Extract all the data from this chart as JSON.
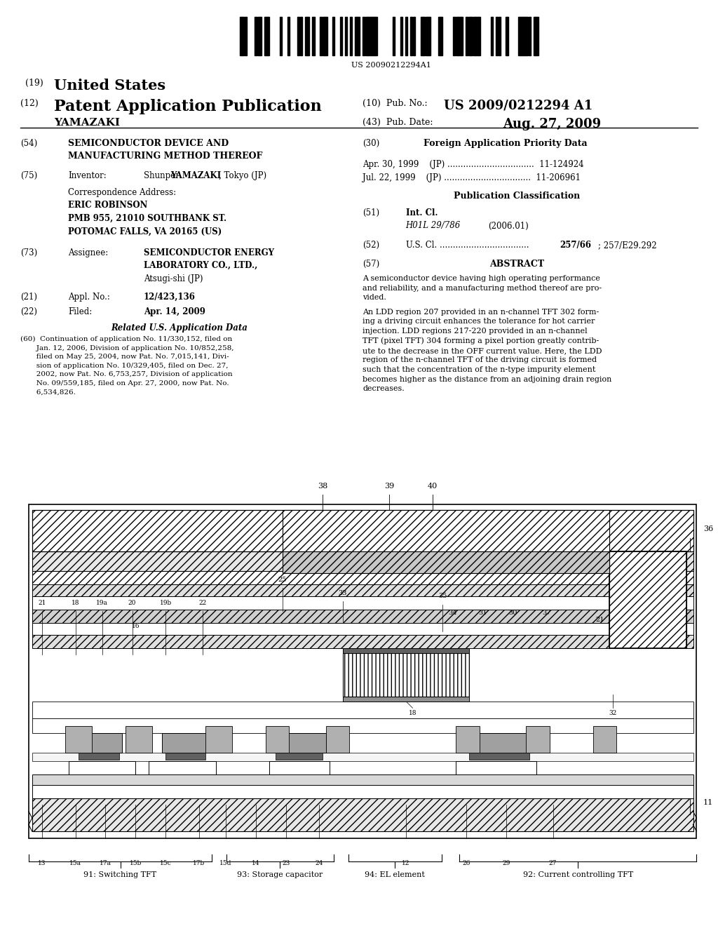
{
  "background_color": "#ffffff",
  "barcode_text": "US 20090212294A1",
  "diagram_label1": "91: Switching TFT",
  "diagram_label2": "93: Storage capacitor",
  "diagram_label3": "94: EL element",
  "diagram_label4": "92: Current controlling TFT"
}
